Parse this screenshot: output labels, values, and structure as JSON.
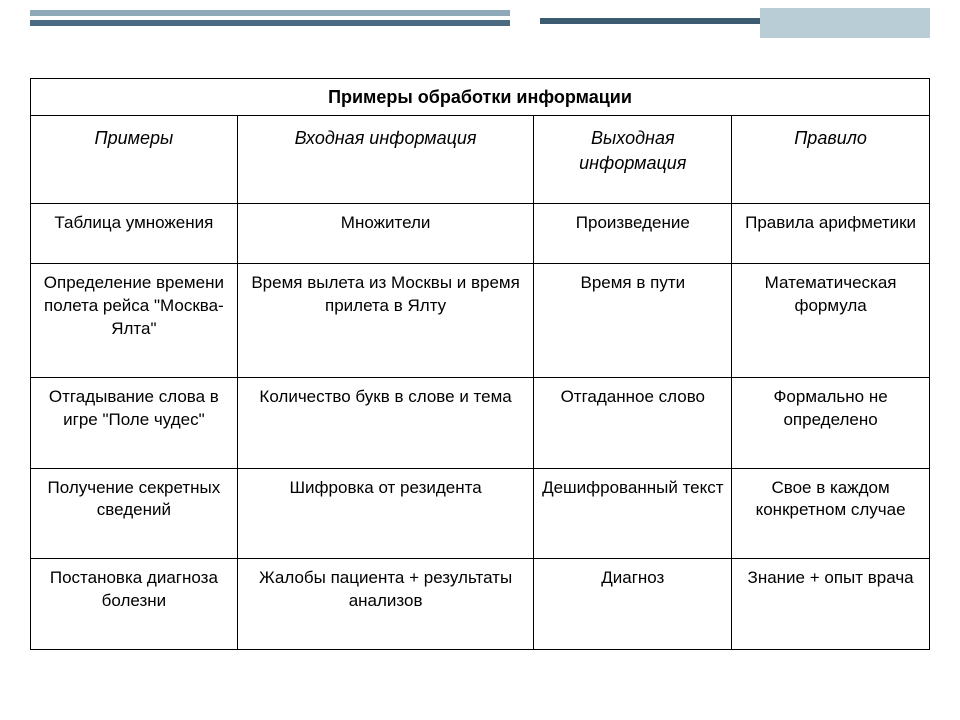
{
  "decor": {
    "bar_light": "#8fa9b8",
    "bar_mid": "#4a6a82",
    "bar_dark": "#3c5a70",
    "block": "#b8cdd6"
  },
  "table": {
    "title": "Примеры обработки информации",
    "columns": [
      "Примеры",
      "Входная информация",
      "Выходная информация",
      "Правило"
    ],
    "col_widths_pct": [
      23,
      33,
      22,
      22
    ],
    "rows": [
      [
        "Таблица умножения",
        "Множители",
        "Произведение",
        "Правила арифметики"
      ],
      [
        "Определение времени полета рейса \"Москва-Ялта\"",
        "Время вылета из Москвы и время прилета в Ялту",
        "Время в пути",
        "Математическая формула"
      ],
      [
        "Отгадывание слова в игре \"Поле чудес\"",
        "Количество букв в слове и тема",
        "Отгаданное слово",
        "Формально не определено"
      ],
      [
        "Получение секретных сведений",
        "Шифровка от резидента",
        "Дешифрованный текст",
        "Свое в каждом конкретном случае"
      ],
      [
        "Постановка диагноза болезни",
        "Жалобы пациента + результаты анализов",
        "Диагноз",
        "Знание + опыт врача"
      ]
    ],
    "font_size_pt": 13,
    "header_italic": true,
    "border_color": "#000000",
    "background_color": "#ffffff",
    "text_color": "#000000"
  }
}
